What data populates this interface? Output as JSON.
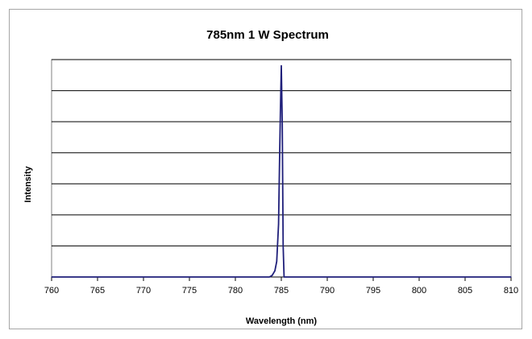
{
  "chart_data": {
    "type": "line",
    "title": "785nm 1 W Spectrum",
    "xlabel": "Wavelength (nm)",
    "ylabel": "Intensity",
    "xlim": [
      760,
      810
    ],
    "ylim": [
      0,
      7
    ],
    "x_ticks": [
      "760",
      "765",
      "770",
      "775",
      "780",
      "785",
      "790",
      "795",
      "800",
      "805",
      "810"
    ],
    "grid": true,
    "legend": "none",
    "series": [
      {
        "color": "#1f1f7a",
        "x": [
          760,
          783.7,
          784.0,
          784.3,
          784.5,
          784.7,
          784.8,
          784.9,
          785.0,
          785.1,
          785.2,
          785.3,
          785.6,
          810
        ],
        "y": [
          0,
          0,
          0.05,
          0.2,
          0.5,
          1.7,
          3.6,
          5.3,
          6.8,
          5.0,
          1.0,
          0,
          0,
          0
        ]
      }
    ]
  }
}
